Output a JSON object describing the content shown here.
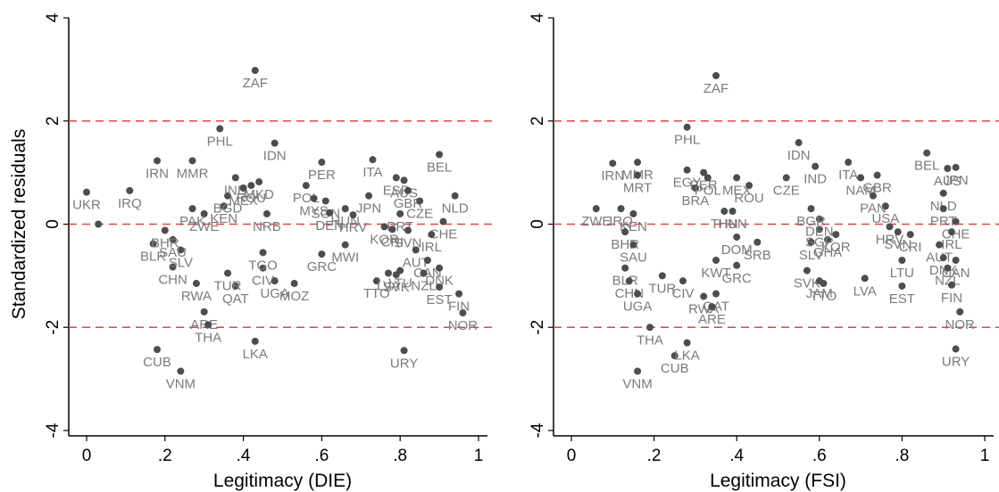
{
  "colors": {
    "point": "#4d4d4d",
    "label": "#7a7a7a",
    "refline": "#e04545",
    "axis": "#000000"
  },
  "chart_data": [
    {
      "type": "scatter",
      "xlabel": "Legitimacy (DIE)",
      "ylabel": "Standardized residuals",
      "xlim": [
        0,
        1
      ],
      "ylim": [
        -4,
        4
      ],
      "x_ticks": [
        0,
        0.2,
        0.4,
        0.6,
        0.8,
        1
      ],
      "x_tick_labels": [
        "0",
        ".2",
        ".4",
        ".6",
        ".8",
        "1"
      ],
      "y_ticks": [
        -4,
        -2,
        0,
        2,
        4
      ],
      "y_tick_labels": [
        "-4",
        "-2",
        "0",
        "2",
        "4"
      ],
      "reference_lines": [
        -2,
        0,
        2
      ],
      "grid": false,
      "points": [
        {
          "x": 0.0,
          "y": 0.62,
          "label": "UKR"
        },
        {
          "x": 0.11,
          "y": 0.65,
          "label": "IRQ"
        },
        {
          "x": 0.18,
          "y": 1.23,
          "label": "IRN"
        },
        {
          "x": 0.27,
          "y": 1.23,
          "label": "MMR"
        },
        {
          "x": 0.34,
          "y": 1.85,
          "label": "PHL"
        },
        {
          "x": 0.43,
          "y": 2.98,
          "label": "ZAF"
        },
        {
          "x": 0.48,
          "y": 1.57,
          "label": "IDN"
        },
        {
          "x": 0.6,
          "y": 1.2,
          "label": "PER"
        },
        {
          "x": 0.73,
          "y": 1.25,
          "label": "ITA"
        },
        {
          "x": 0.9,
          "y": 1.35,
          "label": "BEL"
        },
        {
          "x": 0.94,
          "y": 0.55,
          "label": "NLD"
        },
        {
          "x": 0.91,
          "y": 0.05,
          "label": "CHE"
        },
        {
          "x": 0.03,
          "y": 0.0,
          "label": "—"
        },
        {
          "x": 0.17,
          "y": -0.38,
          "label": "BLR"
        },
        {
          "x": 0.22,
          "y": -0.83,
          "label": "CHN"
        },
        {
          "x": 0.28,
          "y": -1.15,
          "label": "RWA"
        },
        {
          "x": 0.3,
          "y": -1.7,
          "label": "ARE"
        },
        {
          "x": 0.31,
          "y": -1.95,
          "label": "THA"
        },
        {
          "x": 0.18,
          "y": -2.43,
          "label": "CUB"
        },
        {
          "x": 0.24,
          "y": -2.85,
          "label": "VNM"
        },
        {
          "x": 0.43,
          "y": -2.27,
          "label": "LKA"
        },
        {
          "x": 0.81,
          "y": -2.45,
          "label": "URY"
        },
        {
          "x": 0.96,
          "y": -1.72,
          "label": "NOR"
        },
        {
          "x": 0.95,
          "y": -1.35,
          "label": "FIN"
        },
        {
          "x": 0.9,
          "y": -1.22,
          "label": "EST"
        },
        {
          "x": 0.74,
          "y": -1.1,
          "label": "TTO"
        },
        {
          "x": 0.77,
          "y": -0.95,
          "label": "LVA"
        },
        {
          "x": 0.79,
          "y": -0.98,
          "label": "SVK"
        },
        {
          "x": 0.48,
          "y": -1.1,
          "label": "UGA"
        },
        {
          "x": 0.53,
          "y": -1.15,
          "label": "MOZ"
        },
        {
          "x": 0.45,
          "y": -0.85,
          "label": "CIV"
        },
        {
          "x": 0.38,
          "y": -1.2,
          "label": "QAT"
        },
        {
          "x": 0.36,
          "y": -0.95,
          "label": "TUR"
        },
        {
          "x": 0.45,
          "y": -0.55,
          "label": "TGO"
        },
        {
          "x": 0.6,
          "y": -0.58,
          "label": "GRC"
        },
        {
          "x": 0.66,
          "y": -0.4,
          "label": "MWI"
        },
        {
          "x": 0.24,
          "y": -0.5,
          "label": "SLV"
        },
        {
          "x": 0.22,
          "y": -0.3,
          "label": "SAU"
        },
        {
          "x": 0.2,
          "y": -0.12,
          "label": "BHR"
        },
        {
          "x": 0.27,
          "y": 0.3,
          "label": "PAK"
        },
        {
          "x": 0.3,
          "y": 0.2,
          "label": "ZWE"
        },
        {
          "x": 0.35,
          "y": 0.35,
          "label": "KEN"
        },
        {
          "x": 0.36,
          "y": 0.55,
          "label": "BGD"
        },
        {
          "x": 0.38,
          "y": 0.9,
          "label": "IND"
        },
        {
          "x": 0.4,
          "y": 0.7,
          "label": "MEX"
        },
        {
          "x": 0.44,
          "y": 0.82,
          "label": "MKD"
        },
        {
          "x": 0.42,
          "y": 0.75,
          "label": "ROU"
        },
        {
          "x": 0.46,
          "y": 0.2,
          "label": "NRB"
        },
        {
          "x": 0.56,
          "y": 0.75,
          "label": "POL"
        },
        {
          "x": 0.58,
          "y": 0.5,
          "label": "MYS"
        },
        {
          "x": 0.61,
          "y": 0.45,
          "label": "SGN"
        },
        {
          "x": 0.66,
          "y": 0.3,
          "label": "HUN"
        },
        {
          "x": 0.68,
          "y": 0.18,
          "label": "HRV"
        },
        {
          "x": 0.62,
          "y": 0.22,
          "label": "DEN"
        },
        {
          "x": 0.72,
          "y": 0.55,
          "label": "JPN"
        },
        {
          "x": 0.79,
          "y": 0.9,
          "label": "ESP"
        },
        {
          "x": 0.81,
          "y": 0.85,
          "label": "AUS"
        },
        {
          "x": 0.82,
          "y": 0.65,
          "label": "GBR"
        },
        {
          "x": 0.85,
          "y": 0.45,
          "label": "CZE"
        },
        {
          "x": 0.8,
          "y": 0.2,
          "label": "PRT"
        },
        {
          "x": 0.76,
          "y": -0.05,
          "label": "KOR"
        },
        {
          "x": 0.78,
          "y": -0.1,
          "label": "CRI"
        },
        {
          "x": 0.82,
          "y": -0.12,
          "label": "SVN"
        },
        {
          "x": 0.88,
          "y": -0.2,
          "label": "IRL"
        },
        {
          "x": 0.84,
          "y": -0.5,
          "label": "AUT"
        },
        {
          "x": 0.87,
          "y": -0.7,
          "label": "CAN"
        },
        {
          "x": 0.9,
          "y": -0.85,
          "label": "DNK"
        },
        {
          "x": 0.86,
          "y": -0.95,
          "label": "NZL"
        },
        {
          "x": 0.8,
          "y": -0.9,
          "label": "LTU"
        }
      ]
    },
    {
      "type": "scatter",
      "xlabel": "Legitimacy (FSI)",
      "ylabel": "",
      "xlim": [
        0,
        1
      ],
      "ylim": [
        -4,
        4
      ],
      "x_ticks": [
        0,
        0.2,
        0.4,
        0.6,
        0.8,
        1
      ],
      "x_tick_labels": [
        "0",
        ".2",
        ".4",
        ".6",
        ".8",
        "1"
      ],
      "y_ticks": [
        -4,
        -2,
        0,
        2,
        4
      ],
      "y_tick_labels": [
        "-4",
        "-2",
        "0",
        "2",
        "4"
      ],
      "reference_lines": [
        -2,
        0,
        2
      ],
      "grid": false,
      "points": [
        {
          "x": 0.1,
          "y": 1.18,
          "label": "IRN"
        },
        {
          "x": 0.16,
          "y": 1.2,
          "label": "MMR"
        },
        {
          "x": 0.16,
          "y": 0.95,
          "label": "MRT"
        },
        {
          "x": 0.28,
          "y": 1.88,
          "label": "PHL"
        },
        {
          "x": 0.35,
          "y": 2.88,
          "label": "ZAF"
        },
        {
          "x": 0.28,
          "y": 1.05,
          "label": "EGY"
        },
        {
          "x": 0.32,
          "y": 1.0,
          "label": "PER"
        },
        {
          "x": 0.3,
          "y": 0.7,
          "label": "BRA"
        },
        {
          "x": 0.33,
          "y": 0.9,
          "label": "POL"
        },
        {
          "x": 0.4,
          "y": 0.9,
          "label": "MEX"
        },
        {
          "x": 0.43,
          "y": 0.75,
          "label": "ROU"
        },
        {
          "x": 0.55,
          "y": 1.58,
          "label": "IDN"
        },
        {
          "x": 0.59,
          "y": 1.12,
          "label": "IND"
        },
        {
          "x": 0.52,
          "y": 0.9,
          "label": "CZE"
        },
        {
          "x": 0.67,
          "y": 1.2,
          "label": "ITA"
        },
        {
          "x": 0.7,
          "y": 0.9,
          "label": "NAM"
        },
        {
          "x": 0.74,
          "y": 0.95,
          "label": "GBR"
        },
        {
          "x": 0.73,
          "y": 0.55,
          "label": "PAN"
        },
        {
          "x": 0.76,
          "y": 0.35,
          "label": "USA"
        },
        {
          "x": 0.86,
          "y": 1.38,
          "label": "BEL"
        },
        {
          "x": 0.91,
          "y": 1.08,
          "label": "AUS"
        },
        {
          "x": 0.93,
          "y": 1.1,
          "label": "JPN"
        },
        {
          "x": 0.9,
          "y": 0.6,
          "label": "NLD"
        },
        {
          "x": 0.9,
          "y": 0.3,
          "label": "PRT"
        },
        {
          "x": 0.93,
          "y": 0.05,
          "label": "CHE"
        },
        {
          "x": 0.92,
          "y": -0.15,
          "label": "IRL"
        },
        {
          "x": 0.89,
          "y": -0.4,
          "label": "AUT"
        },
        {
          "x": 0.9,
          "y": -0.65,
          "label": "DNK"
        },
        {
          "x": 0.93,
          "y": -0.7,
          "label": "CAN"
        },
        {
          "x": 0.91,
          "y": -0.85,
          "label": "NZL"
        },
        {
          "x": 0.92,
          "y": -1.18,
          "label": "FIN"
        },
        {
          "x": 0.94,
          "y": -1.7,
          "label": "NOR"
        },
        {
          "x": 0.93,
          "y": -2.42,
          "label": "URY"
        },
        {
          "x": 0.8,
          "y": -0.7,
          "label": "LTU"
        },
        {
          "x": 0.8,
          "y": -1.2,
          "label": "EST"
        },
        {
          "x": 0.71,
          "y": -1.05,
          "label": "LVA"
        },
        {
          "x": 0.57,
          "y": -0.9,
          "label": "SVK"
        },
        {
          "x": 0.6,
          "y": -1.1,
          "label": "JAM"
        },
        {
          "x": 0.61,
          "y": -1.15,
          "label": "TTO"
        },
        {
          "x": 0.62,
          "y": -0.3,
          "label": "GHA"
        },
        {
          "x": 0.58,
          "y": -0.35,
          "label": "SLV"
        },
        {
          "x": 0.6,
          "y": -0.1,
          "label": "SGP"
        },
        {
          "x": 0.64,
          "y": -0.2,
          "label": "KOR"
        },
        {
          "x": 0.6,
          "y": 0.1,
          "label": "DEN"
        },
        {
          "x": 0.58,
          "y": 0.3,
          "label": "BGR"
        },
        {
          "x": 0.77,
          "y": -0.05,
          "label": "HRV"
        },
        {
          "x": 0.79,
          "y": -0.15,
          "label": "SVN"
        },
        {
          "x": 0.82,
          "y": -0.2,
          "label": "CRI"
        },
        {
          "x": 0.06,
          "y": 0.3,
          "label": "ZWE"
        },
        {
          "x": 0.12,
          "y": 0.3,
          "label": "IRQ"
        },
        {
          "x": 0.15,
          "y": 0.2,
          "label": "KEN"
        },
        {
          "x": 0.13,
          "y": -0.15,
          "label": "BHR"
        },
        {
          "x": 0.15,
          "y": -0.4,
          "label": "SAU"
        },
        {
          "x": 0.13,
          "y": -0.85,
          "label": "BLR"
        },
        {
          "x": 0.14,
          "y": -1.1,
          "label": "CHN"
        },
        {
          "x": 0.16,
          "y": -1.35,
          "label": "UGA"
        },
        {
          "x": 0.22,
          "y": -1.0,
          "label": "TUR"
        },
        {
          "x": 0.27,
          "y": -1.1,
          "label": "CIV"
        },
        {
          "x": 0.32,
          "y": -1.4,
          "label": "RWA"
        },
        {
          "x": 0.35,
          "y": -1.35,
          "label": "QAT"
        },
        {
          "x": 0.34,
          "y": -1.6,
          "label": "ARE"
        },
        {
          "x": 0.35,
          "y": -0.7,
          "label": "KWT"
        },
        {
          "x": 0.45,
          "y": -0.35,
          "label": "SRB"
        },
        {
          "x": 0.4,
          "y": -0.8,
          "label": "GRC"
        },
        {
          "x": 0.4,
          "y": -0.25,
          "label": "DOM"
        },
        {
          "x": 0.37,
          "y": 0.25,
          "label": "THN"
        },
        {
          "x": 0.39,
          "y": 0.25,
          "label": "HUN"
        },
        {
          "x": 0.19,
          "y": -2.0,
          "label": "THA"
        },
        {
          "x": 0.25,
          "y": -2.55,
          "label": "CUB"
        },
        {
          "x": 0.28,
          "y": -2.3,
          "label": "LKA"
        },
        {
          "x": 0.16,
          "y": -2.85,
          "label": "VNM"
        }
      ]
    }
  ]
}
